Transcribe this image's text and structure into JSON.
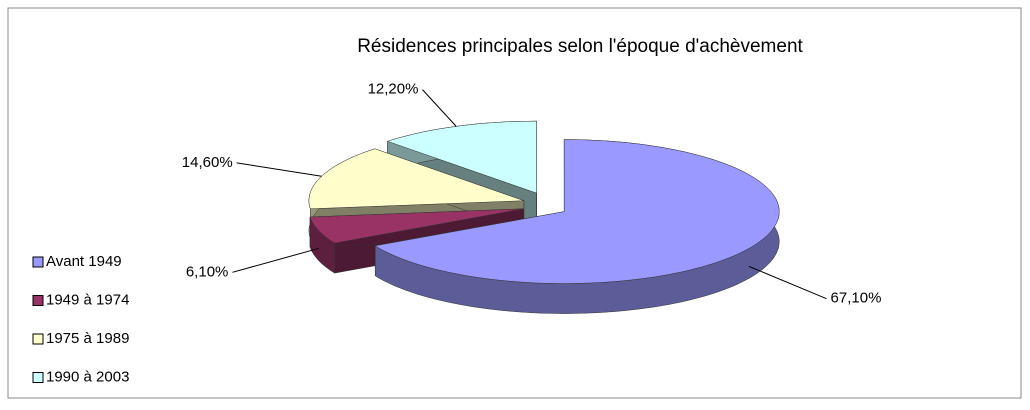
{
  "chart_data": {
    "type": "pie3d",
    "title": "Résidences principales selon l'époque d'achèvement",
    "categories": [
      "Avant 1949",
      "1949 à 1974",
      "1975 à 1989",
      "1990 à 2003"
    ],
    "values": [
      67.1,
      6.1,
      14.6,
      12.2
    ],
    "value_labels": [
      "67,10%",
      "6,10%",
      "14,60%",
      "12,20%"
    ],
    "colors": [
      "#9999ff",
      "#993366",
      "#ffffcc",
      "#ccffff"
    ],
    "legend": "left"
  }
}
